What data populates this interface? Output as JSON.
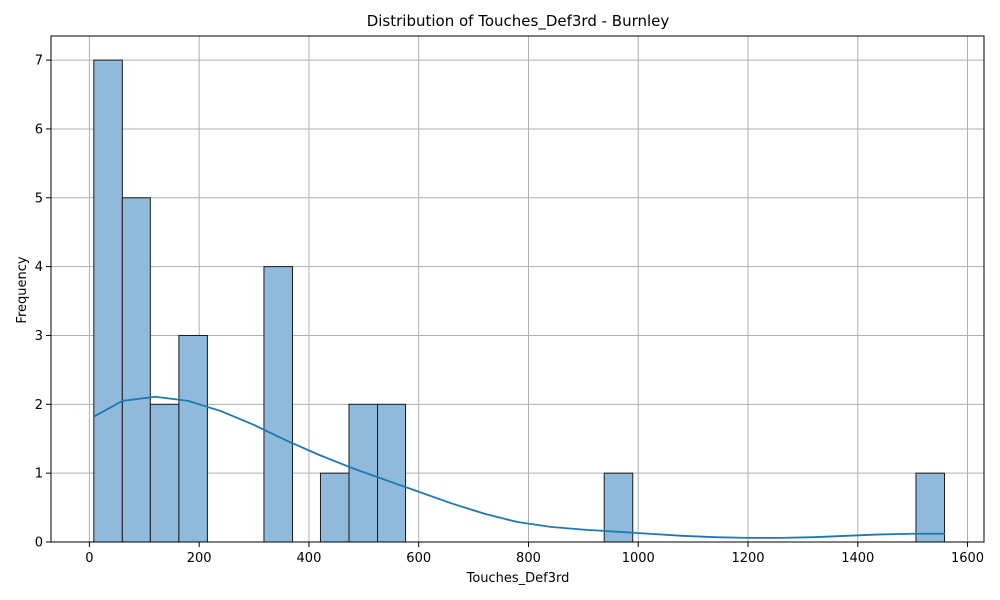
{
  "chart_data": {
    "type": "bar",
    "title": "Distribution of Touches_Def3rd - Burnley",
    "xlabel": "Touches_Def3rd",
    "ylabel": "Frequency",
    "xlim": [
      -70,
      1630
    ],
    "ylim": [
      0,
      7.35
    ],
    "xticks": [
      0,
      200,
      400,
      600,
      800,
      1000,
      1200,
      1400,
      1600
    ],
    "yticks": [
      0,
      1,
      2,
      3,
      4,
      5,
      6,
      7
    ],
    "grid": true,
    "bars": [
      {
        "x0": 8,
        "x1": 60,
        "count": 7
      },
      {
        "x0": 60,
        "x1": 111,
        "count": 5
      },
      {
        "x0": 111,
        "x1": 163,
        "count": 2
      },
      {
        "x0": 163,
        "x1": 215,
        "count": 3
      },
      {
        "x0": 215,
        "x1": 266,
        "count": 0
      },
      {
        "x0": 266,
        "x1": 318,
        "count": 0
      },
      {
        "x0": 318,
        "x1": 370,
        "count": 4
      },
      {
        "x0": 370,
        "x1": 421,
        "count": 0
      },
      {
        "x0": 421,
        "x1": 473,
        "count": 1
      },
      {
        "x0": 473,
        "x1": 525,
        "count": 2
      },
      {
        "x0": 525,
        "x1": 576,
        "count": 2
      },
      {
        "x0": 576,
        "x1": 628,
        "count": 0
      },
      {
        "x0": 628,
        "x1": 680,
        "count": 0
      },
      {
        "x0": 680,
        "x1": 731,
        "count": 0
      },
      {
        "x0": 731,
        "x1": 783,
        "count": 0
      },
      {
        "x0": 783,
        "x1": 835,
        "count": 0
      },
      {
        "x0": 835,
        "x1": 886,
        "count": 0
      },
      {
        "x0": 886,
        "x1": 938,
        "count": 0
      },
      {
        "x0": 938,
        "x1": 990,
        "count": 1
      },
      {
        "x0": 990,
        "x1": 1041,
        "count": 0
      },
      {
        "x0": 1041,
        "x1": 1093,
        "count": 0
      },
      {
        "x0": 1093,
        "x1": 1145,
        "count": 0
      },
      {
        "x0": 1145,
        "x1": 1196,
        "count": 0
      },
      {
        "x0": 1196,
        "x1": 1248,
        "count": 0
      },
      {
        "x0": 1248,
        "x1": 1300,
        "count": 0
      },
      {
        "x0": 1300,
        "x1": 1351,
        "count": 0
      },
      {
        "x0": 1351,
        "x1": 1403,
        "count": 0
      },
      {
        "x0": 1403,
        "x1": 1455,
        "count": 0
      },
      {
        "x0": 1455,
        "x1": 1506,
        "count": 0
      },
      {
        "x0": 1506,
        "x1": 1558,
        "count": 1
      }
    ],
    "kde": {
      "x": [
        8,
        60,
        120,
        180,
        240,
        300,
        360,
        420,
        480,
        540,
        600,
        660,
        720,
        780,
        840,
        900,
        960,
        1020,
        1080,
        1140,
        1200,
        1260,
        1320,
        1380,
        1440,
        1500,
        1558
      ],
      "y": [
        1.82,
        2.05,
        2.11,
        2.05,
        1.9,
        1.7,
        1.47,
        1.26,
        1.07,
        0.9,
        0.73,
        0.56,
        0.41,
        0.29,
        0.22,
        0.18,
        0.15,
        0.12,
        0.09,
        0.07,
        0.06,
        0.06,
        0.07,
        0.09,
        0.11,
        0.12,
        0.12
      ]
    },
    "colors": {
      "bar_fill": "#8fbadb",
      "bar_edge": "#1a1a1a",
      "kde_line": "#1f77b4",
      "grid": "#b0b0b0",
      "axes": "#000000"
    }
  }
}
